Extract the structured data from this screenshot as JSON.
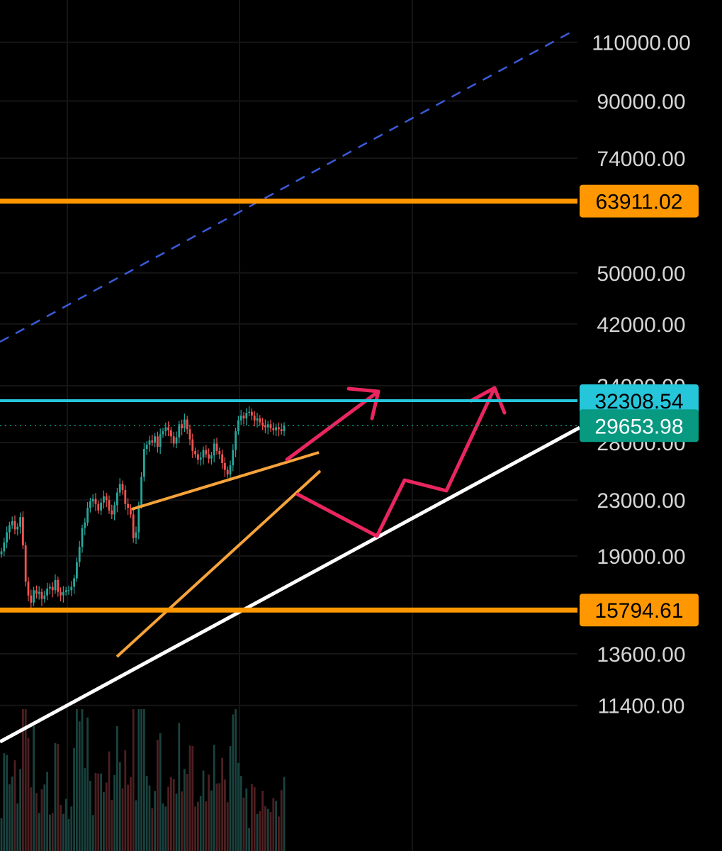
{
  "chart_data": {
    "type": "candlestick",
    "y_scale": "log",
    "ylim": [
      10900,
      125000
    ],
    "y_ticks": [
      "110000.00",
      "90000.00",
      "74000.00",
      "50000.00",
      "42000.00",
      "34000.00",
      "28000.00",
      "23000.00",
      "19000.00",
      "13600.00",
      "11400.00"
    ],
    "y_tick_values": [
      110000,
      90000,
      74000,
      50000,
      42000,
      34000,
      28000,
      23000,
      19000,
      13600,
      11400
    ],
    "price_levels": [
      {
        "label": "63911.02",
        "value": 63911.02,
        "color": "#ff9800",
        "text_color": "#000000",
        "kind": "horizontal-line"
      },
      {
        "label": "32308.54",
        "value": 32308.54,
        "color": "#26c6da",
        "text_color": "#000000",
        "kind": "horizontal-line"
      },
      {
        "label": "29653.98",
        "value": 29653.98,
        "color": "#089981",
        "text_color": "#ffffff",
        "kind": "current-price"
      },
      {
        "label": "15794.61",
        "value": 15794.61,
        "color": "#ff9800",
        "text_color": "#000000",
        "kind": "horizontal-line"
      }
    ],
    "candles_close": [
      19300,
      19900,
      20600,
      21100,
      21400,
      20800,
      21000,
      21700,
      19700,
      17400,
      16600,
      16200,
      16900,
      16700,
      16800,
      16400,
      16600,
      17000,
      17100,
      16900,
      17500,
      16800,
      16600,
      16800,
      16900,
      16900,
      17100,
      17600,
      18600,
      19600,
      20900,
      21300,
      22400,
      22900,
      23100,
      22700,
      22200,
      22800,
      23300,
      23000,
      22200,
      21900,
      22600,
      23600,
      24300,
      23800,
      22700,
      22400,
      21900,
      20200,
      20600,
      22600,
      24900,
      27400,
      27800,
      28200,
      28000,
      28600,
      27600,
      28800,
      29100,
      29500,
      29200,
      28600,
      27900,
      28500,
      29800,
      29400,
      30300,
      29300,
      28300,
      27200,
      26900,
      26400,
      26600,
      27300,
      26900,
      26500,
      26800,
      27900,
      27200,
      26900,
      26100,
      25500,
      25100,
      25900,
      27300,
      29100,
      30200,
      30700,
      30400,
      31000,
      31100,
      30700,
      30200,
      30400,
      30000,
      29700,
      29500,
      29800,
      29400,
      29200,
      29500,
      29300,
      29100,
      29653.98
    ],
    "colors": {
      "up": "#26a69a",
      "down": "#ef5350",
      "background": "#000000",
      "grid": "#151515",
      "trendline_white": "#ffffff",
      "wedge": "#f7a33a",
      "projection": "#e9265f",
      "dashed_channel": "#3a5bd9"
    }
  }
}
